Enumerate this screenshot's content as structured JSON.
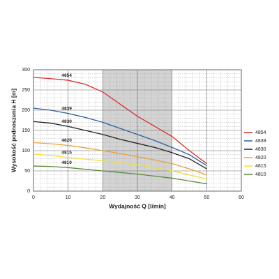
{
  "chart_data": {
    "type": "line",
    "x_label": "Wydajność Q [l/min]",
    "y_label": "Wysokość podnoszenia H [m]",
    "x": [
      0,
      5,
      10,
      15,
      20,
      25,
      30,
      35,
      40,
      45,
      50
    ],
    "series": [
      {
        "name": "4854",
        "color": "#d9302c",
        "values": [
          281,
          278,
          274,
          264,
          245,
          215,
          185,
          160,
          135,
          100,
          68
        ]
      },
      {
        "name": "4839",
        "color": "#2e5e9e",
        "values": [
          205,
          200,
          192,
          182,
          170,
          155,
          140,
          125,
          108,
          90,
          63
        ]
      },
      {
        "name": "4830",
        "color": "#222222",
        "values": [
          172,
          168,
          160,
          150,
          140,
          128,
          118,
          108,
          95,
          80,
          55
        ]
      },
      {
        "name": "4820",
        "color": "#e8a33a",
        "values": [
          120,
          117,
          113,
          107,
          100,
          93,
          85,
          77,
          68,
          55,
          40
        ]
      },
      {
        "name": "4815",
        "color": "#f2de3c",
        "values": [
          92,
          88,
          83,
          79,
          75,
          70,
          65,
          58,
          50,
          40,
          30
        ]
      },
      {
        "name": "4810",
        "color": "#5a8a3a",
        "values": [
          62,
          61,
          58,
          54,
          50,
          46,
          42,
          37,
          32,
          25,
          18
        ]
      }
    ],
    "xlim": [
      0,
      60
    ],
    "xticks": [
      0,
      10,
      20,
      30,
      40,
      50,
      60
    ],
    "ylim": [
      0,
      300
    ],
    "yticks": [
      0,
      50,
      100,
      150,
      200,
      250,
      300
    ],
    "highlight_x": [
      20,
      40
    ],
    "grid": true,
    "legend": "right"
  }
}
